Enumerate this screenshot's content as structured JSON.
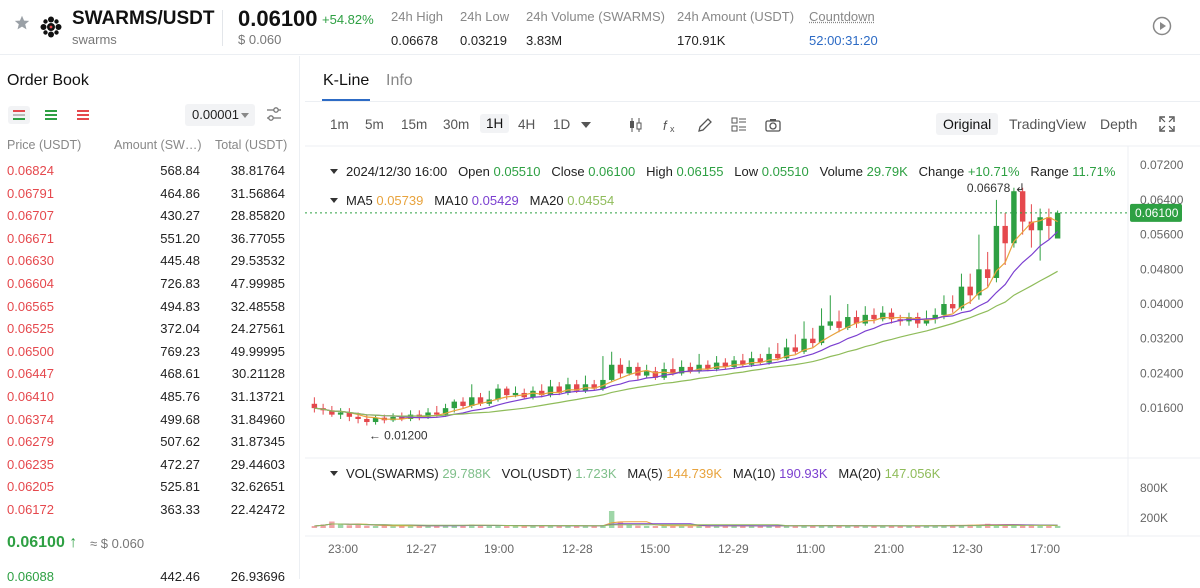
{
  "header": {
    "pair": "SWARMS/USDT",
    "subtitle": "swarms",
    "price": "0.06100",
    "change": "+54.82%",
    "price_usd": "$ 0.060",
    "stats": [
      {
        "label": "24h High",
        "value": "0.06678"
      },
      {
        "label": "24h Low",
        "value": "0.03219"
      },
      {
        "label": "24h Volume (SWARMS)",
        "value": "3.83M"
      },
      {
        "label": "24h Amount (USDT)",
        "value": "170.91K"
      },
      {
        "label": "Countdown",
        "value": "52:00:31:20"
      }
    ],
    "icons": [
      "star-icon",
      "swarms-logo",
      "play-circle-icon"
    ]
  },
  "order_book": {
    "title": "Order Book",
    "precision": "0.00001",
    "columns": [
      "Price (USDT)",
      "Amount (SW…)",
      "Total (USDT)"
    ],
    "asks": [
      {
        "price": "0.06824",
        "amount": "568.84",
        "total": "38.81764"
      },
      {
        "price": "0.06791",
        "amount": "464.86",
        "total": "31.56864"
      },
      {
        "price": "0.06707",
        "amount": "430.27",
        "total": "28.85820"
      },
      {
        "price": "0.06671",
        "amount": "551.20",
        "total": "36.77055"
      },
      {
        "price": "0.06630",
        "amount": "445.48",
        "total": "29.53532"
      },
      {
        "price": "0.06604",
        "amount": "726.83",
        "total": "47.99985"
      },
      {
        "price": "0.06565",
        "amount": "494.83",
        "total": "32.48558"
      },
      {
        "price": "0.06525",
        "amount": "372.04",
        "total": "24.27561"
      },
      {
        "price": "0.06500",
        "amount": "769.23",
        "total": "49.99995"
      },
      {
        "price": "0.06447",
        "amount": "468.61",
        "total": "30.21128"
      },
      {
        "price": "0.06410",
        "amount": "485.76",
        "total": "31.13721"
      },
      {
        "price": "0.06374",
        "amount": "499.68",
        "total": "31.84960"
      },
      {
        "price": "0.06279",
        "amount": "507.62",
        "total": "31.87345"
      },
      {
        "price": "0.06235",
        "amount": "472.27",
        "total": "29.44603"
      },
      {
        "price": "0.06205",
        "amount": "525.81",
        "total": "32.62651"
      },
      {
        "price": "0.06172",
        "amount": "363.33",
        "total": "22.42472"
      }
    ],
    "last_price": "0.06100",
    "last_arrow": "↑",
    "last_usd": "≈ $ 0.060",
    "bids": [
      {
        "price": "0.06088",
        "amount": "442.46",
        "total": "26.93696"
      }
    ]
  },
  "chart_panel": {
    "tabs": [
      "K-Line",
      "Info"
    ],
    "timeframes": [
      "1m",
      "5m",
      "15m",
      "30m",
      "1H",
      "4H",
      "1D"
    ],
    "active_timeframe": "1H",
    "views": [
      "Original",
      "TradingView",
      "Depth"
    ],
    "tool_icons": [
      "candle-type-icon",
      "fx-icon",
      "pencil-icon",
      "layout-icon",
      "camera-icon",
      "fullscreen-icon"
    ],
    "ohlc": {
      "date": "2024/12/30 16:00",
      "open_label": "Open",
      "open": "0.05510",
      "close_label": "Close",
      "close": "0.06100",
      "high_label": "High",
      "high": "0.06155",
      "low_label": "Low",
      "low": "0.05510",
      "volume_label": "Volume",
      "volume": "29.79K",
      "change_label": "Change",
      "change": "+10.71%",
      "range_label": "Range",
      "range": "11.71%"
    },
    "ma": {
      "ma5_label": "MA5",
      "ma5": "0.05739",
      "ma10_label": "MA10",
      "ma10": "0.05429",
      "ma20_label": "MA20",
      "ma20": "0.04554"
    },
    "volume_legend": {
      "vol_label": "VOL(SWARMS)",
      "vol": "29.788K",
      "vol_usdt_label": "VOL(USDT)",
      "vol_usdt": "1.723K",
      "ma5_label": "MA(5)",
      "ma5": "144.739K",
      "ma10_label": "MA(10)",
      "ma10": "190.93K",
      "ma20_label": "MA(20)",
      "ma20": "147.056K"
    },
    "colors": {
      "up": "#2ea043",
      "down": "#e5484d",
      "ma5": "#e8a33d",
      "ma10": "#7b3fd0",
      "ma20": "#8fbc5a",
      "accent": "#2d6bc5"
    }
  },
  "chart_data": {
    "type": "candlestick",
    "price_ticks": [
      "0.07200",
      "0.06400",
      "0.05600",
      "0.04800",
      "0.04000",
      "0.03200",
      "0.02400",
      "0.01600"
    ],
    "price_ylim": [
      0.0105,
      0.0755
    ],
    "volume_ticks": [
      "800K",
      "200K"
    ],
    "x_ticks": [
      "23:00",
      "12-27",
      "19:00",
      "12-28",
      "15:00",
      "12-29",
      "11:00",
      "21:00",
      "12-30",
      "17:00"
    ],
    "current_price_label": "0.06100",
    "current_price": 0.061,
    "max_label": "0.06678",
    "min_label": "← 0.01200",
    "max_marker": "↲",
    "candles": [
      {
        "o": 0.017,
        "c": 0.016,
        "h": 0.0185,
        "l": 0.015
      },
      {
        "o": 0.016,
        "c": 0.0155,
        "h": 0.017,
        "l": 0.0145
      },
      {
        "o": 0.0155,
        "c": 0.0145,
        "h": 0.0165,
        "l": 0.014
      },
      {
        "o": 0.0145,
        "c": 0.015,
        "h": 0.016,
        "l": 0.0135
      },
      {
        "o": 0.015,
        "c": 0.014,
        "h": 0.016,
        "l": 0.013
      },
      {
        "o": 0.014,
        "c": 0.0135,
        "h": 0.015,
        "l": 0.0125
      },
      {
        "o": 0.0135,
        "c": 0.0128,
        "h": 0.0145,
        "l": 0.012
      },
      {
        "o": 0.0128,
        "c": 0.0138,
        "h": 0.0145,
        "l": 0.0122
      },
      {
        "o": 0.0138,
        "c": 0.0132,
        "h": 0.0145,
        "l": 0.0125
      },
      {
        "o": 0.0132,
        "c": 0.014,
        "h": 0.0148,
        "l": 0.0128
      },
      {
        "o": 0.014,
        "c": 0.0135,
        "h": 0.015,
        "l": 0.013
      },
      {
        "o": 0.0135,
        "c": 0.0145,
        "h": 0.0155,
        "l": 0.013
      },
      {
        "o": 0.0145,
        "c": 0.014,
        "h": 0.0155,
        "l": 0.0132
      },
      {
        "o": 0.014,
        "c": 0.015,
        "h": 0.016,
        "l": 0.0135
      },
      {
        "o": 0.015,
        "c": 0.0145,
        "h": 0.0165,
        "l": 0.014
      },
      {
        "o": 0.0145,
        "c": 0.016,
        "h": 0.017,
        "l": 0.014
      },
      {
        "o": 0.016,
        "c": 0.0175,
        "h": 0.018,
        "l": 0.015
      },
      {
        "o": 0.0175,
        "c": 0.0165,
        "h": 0.0185,
        "l": 0.016
      },
      {
        "o": 0.0165,
        "c": 0.0185,
        "h": 0.0215,
        "l": 0.016
      },
      {
        "o": 0.0185,
        "c": 0.017,
        "h": 0.0195,
        "l": 0.0165
      },
      {
        "o": 0.017,
        "c": 0.018,
        "h": 0.02,
        "l": 0.0165
      },
      {
        "o": 0.018,
        "c": 0.0205,
        "h": 0.0215,
        "l": 0.0175
      },
      {
        "o": 0.0205,
        "c": 0.019,
        "h": 0.021,
        "l": 0.018
      },
      {
        "o": 0.019,
        "c": 0.0195,
        "h": 0.021,
        "l": 0.0185
      },
      {
        "o": 0.0195,
        "c": 0.0185,
        "h": 0.0205,
        "l": 0.018
      },
      {
        "o": 0.0185,
        "c": 0.02,
        "h": 0.021,
        "l": 0.018
      },
      {
        "o": 0.02,
        "c": 0.019,
        "h": 0.0215,
        "l": 0.0185
      },
      {
        "o": 0.019,
        "c": 0.021,
        "h": 0.0225,
        "l": 0.0185
      },
      {
        "o": 0.021,
        "c": 0.0195,
        "h": 0.022,
        "l": 0.019
      },
      {
        "o": 0.0195,
        "c": 0.0215,
        "h": 0.023,
        "l": 0.019
      },
      {
        "o": 0.0215,
        "c": 0.02,
        "h": 0.0225,
        "l": 0.0195
      },
      {
        "o": 0.02,
        "c": 0.0215,
        "h": 0.0235,
        "l": 0.0195
      },
      {
        "o": 0.0215,
        "c": 0.0205,
        "h": 0.0225,
        "l": 0.02
      },
      {
        "o": 0.0205,
        "c": 0.0225,
        "h": 0.028,
        "l": 0.02
      },
      {
        "o": 0.0225,
        "c": 0.026,
        "h": 0.029,
        "l": 0.022
      },
      {
        "o": 0.026,
        "c": 0.024,
        "h": 0.0275,
        "l": 0.023
      },
      {
        "o": 0.024,
        "c": 0.0255,
        "h": 0.027,
        "l": 0.0235
      },
      {
        "o": 0.0255,
        "c": 0.0235,
        "h": 0.0265,
        "l": 0.0225
      },
      {
        "o": 0.0235,
        "c": 0.0245,
        "h": 0.026,
        "l": 0.023
      },
      {
        "o": 0.0245,
        "c": 0.023,
        "h": 0.0255,
        "l": 0.0225
      },
      {
        "o": 0.023,
        "c": 0.025,
        "h": 0.0265,
        "l": 0.0225
      },
      {
        "o": 0.025,
        "c": 0.024,
        "h": 0.0275,
        "l": 0.0235
      },
      {
        "o": 0.024,
        "c": 0.0255,
        "h": 0.027,
        "l": 0.0235
      },
      {
        "o": 0.0255,
        "c": 0.0245,
        "h": 0.0265,
        "l": 0.024
      },
      {
        "o": 0.0245,
        "c": 0.026,
        "h": 0.0285,
        "l": 0.024
      },
      {
        "o": 0.026,
        "c": 0.025,
        "h": 0.027,
        "l": 0.0245
      },
      {
        "o": 0.025,
        "c": 0.0265,
        "h": 0.028,
        "l": 0.0245
      },
      {
        "o": 0.0265,
        "c": 0.0255,
        "h": 0.0275,
        "l": 0.025
      },
      {
        "o": 0.0255,
        "c": 0.027,
        "h": 0.028,
        "l": 0.025
      },
      {
        "o": 0.027,
        "c": 0.026,
        "h": 0.0285,
        "l": 0.0255
      },
      {
        "o": 0.026,
        "c": 0.0275,
        "h": 0.029,
        "l": 0.0255
      },
      {
        "o": 0.0275,
        "c": 0.0265,
        "h": 0.0285,
        "l": 0.026
      },
      {
        "o": 0.0265,
        "c": 0.0285,
        "h": 0.03,
        "l": 0.026
      },
      {
        "o": 0.0285,
        "c": 0.0275,
        "h": 0.031,
        "l": 0.027
      },
      {
        "o": 0.0275,
        "c": 0.03,
        "h": 0.032,
        "l": 0.027
      },
      {
        "o": 0.03,
        "c": 0.029,
        "h": 0.033,
        "l": 0.0285
      },
      {
        "o": 0.029,
        "c": 0.032,
        "h": 0.036,
        "l": 0.0285
      },
      {
        "o": 0.032,
        "c": 0.031,
        "h": 0.0345,
        "l": 0.03
      },
      {
        "o": 0.031,
        "c": 0.035,
        "h": 0.039,
        "l": 0.0305
      },
      {
        "o": 0.035,
        "c": 0.036,
        "h": 0.042,
        "l": 0.034
      },
      {
        "o": 0.036,
        "c": 0.0345,
        "h": 0.0385,
        "l": 0.0335
      },
      {
        "o": 0.0345,
        "c": 0.037,
        "h": 0.04,
        "l": 0.034
      },
      {
        "o": 0.037,
        "c": 0.0355,
        "h": 0.0385,
        "l": 0.0345
      },
      {
        "o": 0.0355,
        "c": 0.0375,
        "h": 0.0395,
        "l": 0.035
      },
      {
        "o": 0.0375,
        "c": 0.0365,
        "h": 0.039,
        "l": 0.0355
      },
      {
        "o": 0.0365,
        "c": 0.038,
        "h": 0.0395,
        "l": 0.036
      },
      {
        "o": 0.038,
        "c": 0.0365,
        "h": 0.039,
        "l": 0.0355
      },
      {
        "o": 0.0365,
        "c": 0.036,
        "h": 0.0375,
        "l": 0.035
      },
      {
        "o": 0.036,
        "c": 0.037,
        "h": 0.038,
        "l": 0.035
      },
      {
        "o": 0.037,
        "c": 0.0355,
        "h": 0.038,
        "l": 0.0345
      },
      {
        "o": 0.0355,
        "c": 0.0365,
        "h": 0.0385,
        "l": 0.035
      },
      {
        "o": 0.0365,
        "c": 0.0375,
        "h": 0.039,
        "l": 0.0355
      },
      {
        "o": 0.0375,
        "c": 0.04,
        "h": 0.042,
        "l": 0.0365
      },
      {
        "o": 0.04,
        "c": 0.039,
        "h": 0.042,
        "l": 0.038
      },
      {
        "o": 0.039,
        "c": 0.044,
        "h": 0.047,
        "l": 0.0385
      },
      {
        "o": 0.044,
        "c": 0.042,
        "h": 0.047,
        "l": 0.04
      },
      {
        "o": 0.042,
        "c": 0.048,
        "h": 0.056,
        "l": 0.041
      },
      {
        "o": 0.048,
        "c": 0.046,
        "h": 0.052,
        "l": 0.044
      },
      {
        "o": 0.046,
        "c": 0.058,
        "h": 0.064,
        "l": 0.045
      },
      {
        "o": 0.058,
        "c": 0.054,
        "h": 0.061,
        "l": 0.049
      },
      {
        "o": 0.054,
        "c": 0.066,
        "h": 0.0668,
        "l": 0.053
      },
      {
        "o": 0.066,
        "c": 0.059,
        "h": 0.0668,
        "l": 0.056
      },
      {
        "o": 0.059,
        "c": 0.057,
        "h": 0.063,
        "l": 0.053
      },
      {
        "o": 0.057,
        "c": 0.06,
        "h": 0.062,
        "l": 0.05
      },
      {
        "o": 0.06,
        "c": 0.058,
        "h": 0.062,
        "l": 0.055
      },
      {
        "o": 0.0551,
        "c": 0.061,
        "h": 0.06155,
        "l": 0.0551
      }
    ],
    "volumes": [
      40,
      70,
      130,
      80,
      55,
      60,
      45,
      40,
      50,
      38,
      42,
      50,
      45,
      40,
      48,
      55,
      60,
      42,
      70,
      45,
      40,
      52,
      48,
      45,
      40,
      42,
      50,
      45,
      40,
      48,
      44,
      40,
      42,
      55,
      340,
      130,
      60,
      48,
      42,
      40,
      45,
      50,
      42,
      40,
      48,
      45,
      40,
      42,
      44,
      40,
      46,
      42,
      40,
      45,
      48,
      50,
      55,
      45,
      50,
      52,
      40,
      42,
      45,
      40,
      38,
      42,
      44,
      40,
      42,
      45,
      50,
      48,
      55,
      60,
      50,
      65,
      70,
      85,
      60,
      55,
      65,
      50,
      58,
      45,
      40,
      42
    ],
    "volume_ylim": [
      0,
      1000
    ]
  }
}
